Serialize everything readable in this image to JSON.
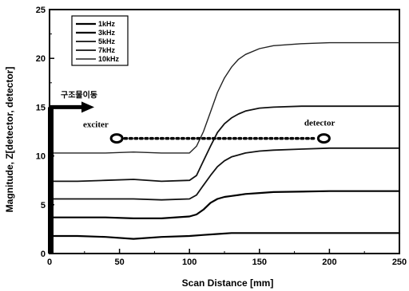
{
  "chart_data": {
    "type": "line",
    "xlabel": "Scan Distance [mm]",
    "ylabel": "Magnitude, Z[detector, detector]",
    "xlim": [
      0,
      250
    ],
    "ylim": [
      0,
      25
    ],
    "xticks": [
      0,
      50,
      100,
      150,
      200,
      250
    ],
    "yticks": [
      0,
      5,
      10,
      15,
      20,
      25
    ],
    "grid": false,
    "legend_position": "top-left",
    "series": [
      {
        "name": "1kHz",
        "x": [
          0,
          20,
          40,
          60,
          80,
          100,
          110,
          120,
          130,
          140,
          160,
          200,
          250
        ],
        "y": [
          1.8,
          1.8,
          1.7,
          1.5,
          1.7,
          1.8,
          1.9,
          2.0,
          2.1,
          2.1,
          2.1,
          2.1,
          2.1
        ]
      },
      {
        "name": "3kHz",
        "x": [
          0,
          20,
          40,
          60,
          80,
          100,
          105,
          110,
          115,
          120,
          125,
          130,
          135,
          140,
          150,
          160,
          200,
          250
        ],
        "y": [
          3.7,
          3.7,
          3.7,
          3.6,
          3.6,
          3.8,
          4.0,
          4.5,
          5.2,
          5.6,
          5.8,
          5.9,
          6.0,
          6.1,
          6.2,
          6.3,
          6.4,
          6.4
        ]
      },
      {
        "name": "5kHz",
        "x": [
          0,
          20,
          40,
          60,
          80,
          100,
          105,
          110,
          115,
          120,
          125,
          130,
          135,
          140,
          150,
          160,
          180,
          200,
          250
        ],
        "y": [
          5.6,
          5.6,
          5.6,
          5.6,
          5.5,
          5.6,
          6.0,
          7.0,
          8.0,
          8.9,
          9.5,
          9.9,
          10.1,
          10.3,
          10.5,
          10.6,
          10.7,
          10.8,
          10.8
        ]
      },
      {
        "name": "7kHz",
        "x": [
          0,
          20,
          40,
          60,
          80,
          100,
          105,
          110,
          115,
          120,
          125,
          130,
          135,
          140,
          150,
          160,
          180,
          200,
          250
        ],
        "y": [
          7.4,
          7.4,
          7.5,
          7.6,
          7.4,
          7.5,
          8.0,
          9.5,
          11.0,
          12.4,
          13.3,
          13.9,
          14.3,
          14.6,
          14.9,
          15.0,
          15.1,
          15.1,
          15.1
        ]
      },
      {
        "name": "10kHz",
        "x": [
          0,
          20,
          40,
          60,
          80,
          100,
          105,
          110,
          115,
          120,
          125,
          130,
          135,
          140,
          150,
          160,
          170,
          180,
          200,
          220,
          250
        ],
        "y": [
          10.3,
          10.3,
          10.3,
          10.4,
          10.3,
          10.3,
          11.0,
          12.5,
          14.5,
          16.5,
          18.0,
          19.1,
          19.9,
          20.4,
          21.0,
          21.3,
          21.4,
          21.5,
          21.6,
          21.6,
          21.6
        ]
      }
    ],
    "annotations": {
      "arrow_label": "구조물이동",
      "exciter": "exciter",
      "detector": "detector"
    }
  }
}
